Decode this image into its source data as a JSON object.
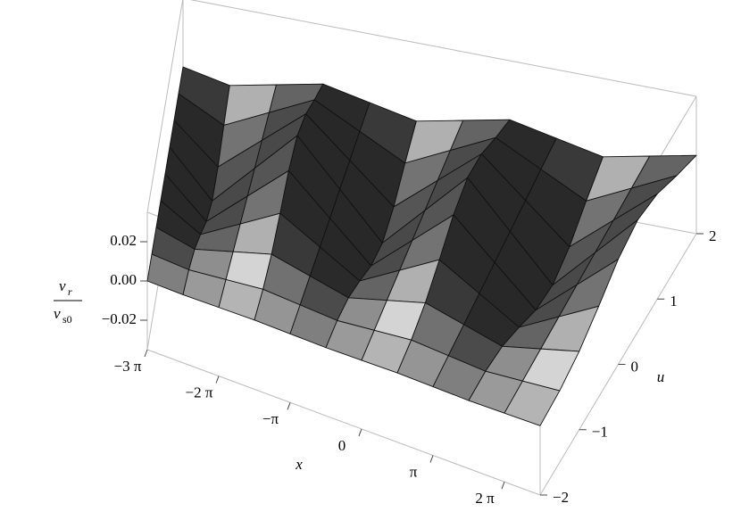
{
  "chart_data": {
    "type": "surface",
    "x": [
      -9.42,
      -7.85,
      -6.28,
      -4.71,
      -3.14,
      -1.57,
      0,
      1.57,
      3.14,
      4.71,
      6.28,
      7.85
    ],
    "u": [
      -2,
      -1.5,
      -1,
      -0.5,
      0,
      0.5,
      1,
      1.5,
      2
    ],
    "z": [
      [
        0,
        -0.0003,
        0,
        0.0003,
        0,
        -0.0003,
        0,
        0.0003,
        0,
        -0.0003,
        0,
        0.0003
      ],
      [
        0,
        -0.0015,
        0,
        0.0015,
        0,
        -0.0015,
        0,
        0.0015,
        0,
        -0.0015,
        0,
        0.0015
      ],
      [
        0,
        -0.0049,
        0,
        0.0049,
        0,
        -0.0049,
        0,
        0.0049,
        0,
        -0.0049,
        0,
        0.0049
      ],
      [
        0,
        -0.0113,
        0,
        0.0113,
        0,
        -0.0113,
        0,
        0.0113,
        0,
        -0.0113,
        0,
        0.0113
      ],
      [
        0,
        -0.0186,
        0,
        0.0186,
        0,
        -0.0186,
        0,
        0.0186,
        0,
        -0.0186,
        0,
        0.0186
      ],
      [
        0,
        -0.022,
        0,
        0.022,
        0,
        -0.022,
        0,
        0.022,
        0,
        -0.022,
        0,
        0.022
      ],
      [
        0,
        -0.0186,
        0,
        0.0186,
        0,
        -0.0186,
        0,
        0.0186,
        0,
        -0.0186,
        0,
        0.0186
      ],
      [
        0,
        -0.0113,
        0,
        0.0113,
        0,
        -0.0113,
        0,
        0.0113,
        0,
        -0.0113,
        0,
        0.0113
      ],
      [
        0,
        -0.0049,
        0,
        0.0049,
        0,
        -0.0049,
        0,
        0.0049,
        0,
        -0.0049,
        0,
        0.0049
      ]
    ],
    "xlim": [
      -9.42,
      7.85
    ],
    "xticks": [
      {
        "value": -9.42,
        "label": "−3 π"
      },
      {
        "value": -6.28,
        "label": "−2 π"
      },
      {
        "value": -3.14,
        "label": "−π"
      },
      0,
      {
        "value": 3.14,
        "label": "π"
      },
      {
        "value": 6.28,
        "label": "2 π"
      }
    ],
    "ulim": [
      -2,
      2
    ],
    "uticks": [
      {
        "value": -2,
        "label": "−2"
      },
      {
        "value": -1,
        "label": "−1"
      },
      0,
      1,
      2
    ],
    "zlim": [
      -0.035,
      0.035
    ],
    "zticks": [
      0.02,
      {
        "value": 0,
        "label": "0.00"
      },
      {
        "value": -0.02,
        "label": "−0.02"
      }
    ],
    "xlabel": "x",
    "ulabel": "u",
    "zlabel": {
      "numerator": "v",
      "numerator_sub": "r",
      "denominator": "v",
      "denominator_sub": "s0"
    }
  }
}
